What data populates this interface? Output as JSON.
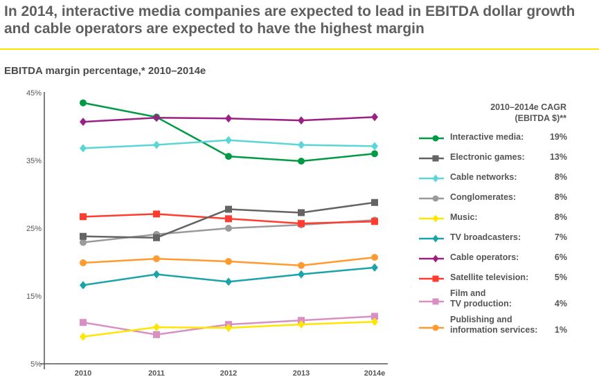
{
  "title": "In 2014, interactive media companies are expected to lead in EBITDA dollar growth and cable operators are expected to have the highest margin",
  "chart_data": {
    "type": "line",
    "subtitle": "EBITDA margin percentage,* 2010–2014e",
    "categories": [
      "2010",
      "2011",
      "2012",
      "2013",
      "2014e"
    ],
    "ylim": [
      5,
      45
    ],
    "yticks": [
      "45%",
      "35%",
      "25%",
      "15%",
      "5%"
    ],
    "grid": false,
    "legend_position": "right",
    "legend_header": "2010–2014e CAGR (EBITDA $)**",
    "series": [
      {
        "name": "Interactive media:",
        "cagr": "19%",
        "color": "#009a44",
        "marker": "circle",
        "values": [
          43.5,
          41.4,
          35.6,
          34.9,
          36.0
        ]
      },
      {
        "name": "Electronic games:",
        "cagr": "13%",
        "color": "#646464",
        "marker": "square",
        "values": [
          23.8,
          23.6,
          27.8,
          27.3,
          28.8
        ]
      },
      {
        "name": "Cable networks:",
        "cagr": "8%",
        "color": "#5bd6d6",
        "marker": "diamond",
        "values": [
          36.8,
          37.3,
          38.0,
          37.3,
          37.1
        ]
      },
      {
        "name": "Conglomerates:",
        "cagr": "8%",
        "color": "#9a9a9a",
        "marker": "circle",
        "values": [
          22.9,
          24.1,
          25.0,
          25.5,
          26.2
        ]
      },
      {
        "name": "Music:",
        "cagr": "8%",
        "color": "#ffe600",
        "marker": "diamond",
        "values": [
          9.0,
          10.4,
          10.3,
          10.8,
          11.2
        ]
      },
      {
        "name": "TV broadcasters:",
        "cagr": "7%",
        "color": "#1aa3a8",
        "marker": "diamond",
        "values": [
          16.6,
          18.2,
          17.1,
          18.2,
          19.2
        ]
      },
      {
        "name": "Cable operators:",
        "cagr": "6%",
        "color": "#9c1f83",
        "marker": "diamond",
        "values": [
          40.7,
          41.3,
          41.2,
          40.9,
          41.4
        ]
      },
      {
        "name": "Satellite television:",
        "cagr": "5%",
        "color": "#ff3c2e",
        "marker": "square",
        "values": [
          26.7,
          27.1,
          26.4,
          25.7,
          26.0
        ]
      },
      {
        "name": "Film and\nTV production:",
        "cagr": "4%",
        "color": "#d98fc4",
        "marker": "square",
        "values": [
          11.1,
          9.3,
          10.8,
          11.4,
          12.0
        ]
      },
      {
        "name": "Publishing and\ninformation services:",
        "cagr": "1%",
        "color": "#ff9a2e",
        "marker": "circle",
        "values": [
          19.9,
          20.5,
          20.1,
          19.5,
          20.7
        ]
      }
    ]
  }
}
